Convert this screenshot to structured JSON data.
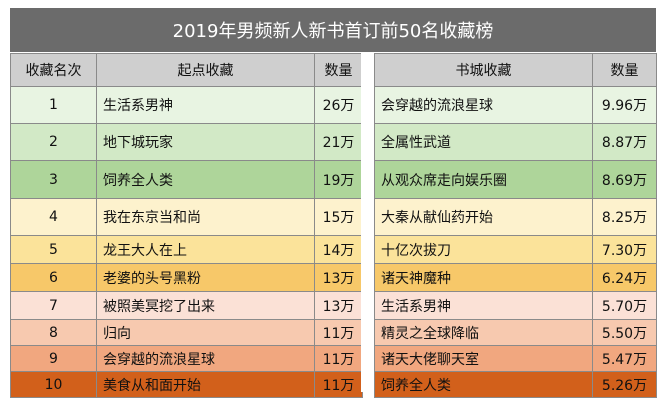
{
  "title": "2019年男频新人新书首订前50名收藏榜",
  "headers": {
    "rank": "收藏名次",
    "qidian": "起点收藏",
    "count": "数量",
    "shucheng": "书城收藏",
    "count2": "数量"
  },
  "rows": [
    {
      "rank": "1",
      "qidian_book": "生活系男神",
      "qidian_count": "26万",
      "shucheng_book": "会穿越的流浪星球",
      "shucheng_count": "9.96万",
      "color": "#e8f4e2"
    },
    {
      "rank": "2",
      "qidian_book": "地下城玩家",
      "qidian_count": "21万",
      "shucheng_book": "全属性武道",
      "shucheng_count": "8.87万",
      "color": "#d2e9c6"
    },
    {
      "rank": "3",
      "qidian_book": "饲养全人类",
      "qidian_count": "19万",
      "shucheng_book": "从观众席走向娱乐圈",
      "shucheng_count": "8.69万",
      "color": "#aed59a"
    },
    {
      "rank": "4",
      "qidian_book": "我在东京当和尚",
      "qidian_count": "15万",
      "shucheng_book": "大秦从献仙药开始",
      "shucheng_count": "8.25万",
      "color": "#fdf2cd"
    },
    {
      "rank": "5",
      "qidian_book": "龙王大人在上",
      "qidian_count": "14万",
      "shucheng_book": "十亿次拔刀",
      "shucheng_count": "7.30万",
      "color": "#fbe39a"
    },
    {
      "rank": "6",
      "qidian_book": "老婆的头号黑粉",
      "qidian_count": "13万",
      "shucheng_book": "诸天神魔种",
      "shucheng_count": "6.24万",
      "color": "#f7c869"
    },
    {
      "rank": "7",
      "qidian_book": "被照美冥挖了出来",
      "qidian_count": "13万",
      "shucheng_book": "生活系男神",
      "shucheng_count": "5.70万",
      "color": "#fbe1d6"
    },
    {
      "rank": "8",
      "qidian_book": "归向",
      "qidian_count": "11万",
      "shucheng_book": "精灵之全球降临",
      "shucheng_count": "5.50万",
      "color": "#f7c9af"
    },
    {
      "rank": "9",
      "qidian_book": "会穿越的流浪星球",
      "qidian_count": "11万",
      "shucheng_book": "诸天大佬聊天室",
      "shucheng_count": "5.47万",
      "color": "#f1a77f"
    },
    {
      "rank": "10",
      "qidian_book": "美食从和面开始",
      "qidian_count": "11万",
      "shucheng_book": "饲养全人类",
      "shucheng_count": "5.26万",
      "color": "#d2601b"
    }
  ]
}
